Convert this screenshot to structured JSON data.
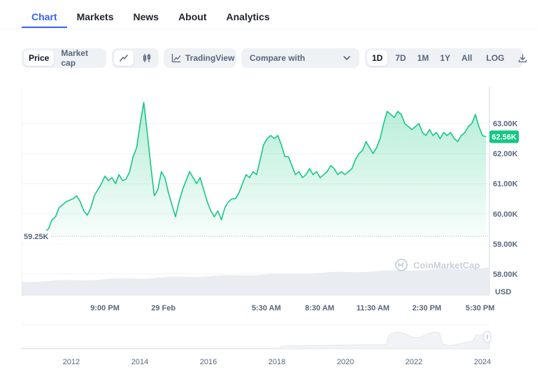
{
  "tabs": [
    {
      "label": "Chart",
      "active": true
    },
    {
      "label": "Markets"
    },
    {
      "label": "News"
    },
    {
      "label": "About"
    },
    {
      "label": "Analytics"
    }
  ],
  "toolbar": {
    "price_label": "Price",
    "marketcap_label": "Market cap",
    "line_icon": "line-chart-icon",
    "candle_icon": "candlestick-icon",
    "tradingview_label": "TradingView",
    "compare_label": "Compare with",
    "ranges": [
      "1D",
      "7D",
      "1M",
      "1Y",
      "All"
    ],
    "active_range": "1D",
    "log_label": "LOG",
    "download_icon": "download-icon"
  },
  "colors": {
    "accent": "#3861fb",
    "line": "#16c784",
    "badge": "#16c784",
    "muted": "#58667e"
  },
  "watermark": "CoinMarketCap",
  "chart_data": {
    "type": "line",
    "currency_label": "USD",
    "y_ticks": [
      "63.00K",
      "62.00K",
      "61.00K",
      "60.00K",
      "59.00K",
      "58.00K"
    ],
    "y_tick_values": [
      63000,
      62000,
      61000,
      60000,
      59000,
      58000
    ],
    "ylim": [
      57300,
      64200
    ],
    "x_tick_labels": [
      "9:00 PM",
      "29 Feb",
      "5:30 AM",
      "8:30 AM",
      "11:30 AM",
      "2:30 PM",
      "5:30 PM"
    ],
    "x_tick_positions": [
      0.178,
      0.303,
      0.523,
      0.637,
      0.751,
      0.866,
      0.98
    ],
    "current_price_label": "62.56K",
    "current_price": 62560,
    "open_price_label": "59.25K",
    "open_price": 59250,
    "series": [
      {
        "values": [
          59250,
          59100,
          59150,
          59300,
          59350,
          59400,
          59400,
          59500,
          59800,
          59900,
          60200,
          60300,
          60400,
          60450,
          60500,
          60600,
          60400,
          60100,
          59950,
          60200,
          60600,
          60800,
          61000,
          61250,
          61100,
          61200,
          61000,
          61300,
          61100,
          61150,
          61400,
          61900,
          62200,
          63000,
          63700,
          62700,
          61600,
          60600,
          60800,
          61400,
          61200,
          60700,
          60300,
          59900,
          60400,
          60800,
          61100,
          61400,
          61200,
          61000,
          61200,
          60800,
          60400,
          60100,
          59900,
          60100,
          59800,
          60200,
          60400,
          60500,
          60500,
          60700,
          61000,
          61300,
          61200,
          61400,
          61300,
          61800,
          62300,
          62500,
          62600,
          62500,
          62600,
          62300,
          61900,
          61900,
          61600,
          61300,
          61400,
          61200,
          61300,
          61500,
          61300,
          61400,
          61200,
          61300,
          61400,
          61600,
          61500,
          61300,
          61400,
          61300,
          61400,
          61500,
          61800,
          62000,
          62100,
          62400,
          62200,
          62000,
          62200,
          62500,
          63000,
          63400,
          63300,
          63200,
          63400,
          63300,
          63000,
          62900,
          62800,
          62900,
          63000,
          62700,
          62600,
          62800,
          62600,
          62700,
          62500,
          62700,
          62600,
          62700,
          62500,
          62400,
          62600,
          62700,
          62900,
          63000,
          63300,
          62900,
          62600,
          62560
        ]
      }
    ],
    "volume_note": "volume-area",
    "navigator": {
      "x_labels": [
        "2012",
        "2014",
        "2016",
        "2018",
        "2020",
        "2022",
        "2024"
      ]
    }
  }
}
